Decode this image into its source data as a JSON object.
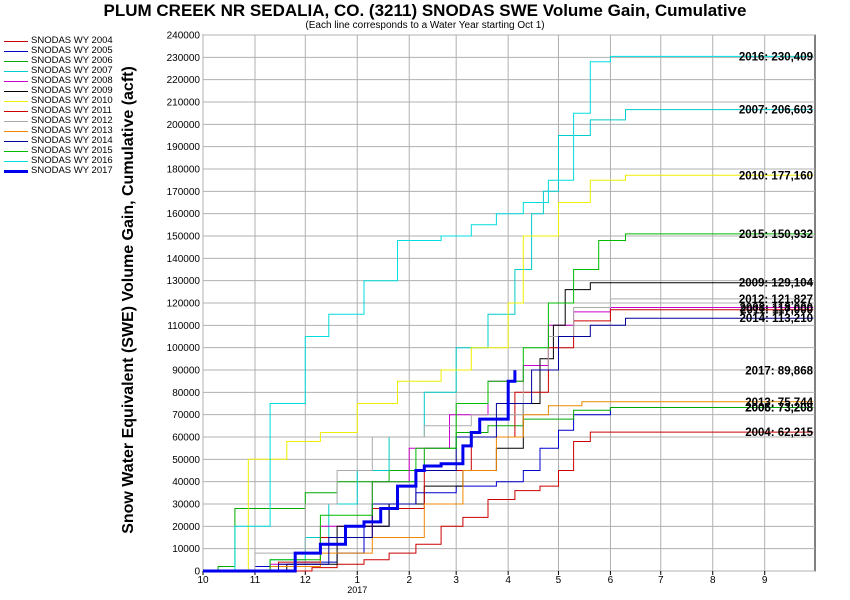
{
  "chart_data": {
    "type": "line",
    "title": "PLUM CREEK NR SEDALIA, CO. (3211) SNODAS SWE Volume Gain, Cumulative",
    "subtitle": "(Each line corresponds to a Water Year starting Oct 1)",
    "ylabel": "Snow Water Equivalent (SWE) Volume Gain, Cumulative (acft)",
    "xlabel": "",
    "ylim": [
      0,
      240000
    ],
    "yticks": [
      "0",
      "10000",
      "20000",
      "30000",
      "40000",
      "50000",
      "60000",
      "70000",
      "80000",
      "90000",
      "100000",
      "110000",
      "120000",
      "130000",
      "140000",
      "150000",
      "160000",
      "170000",
      "180000",
      "190000",
      "200000",
      "210000",
      "220000",
      "230000",
      "240000"
    ],
    "xlim": [
      "Oct 1",
      "Oct 1"
    ],
    "xticks": [
      "10",
      "11",
      "12",
      "1",
      "2",
      "3",
      "4",
      "5",
      "6",
      "7",
      "8",
      "9"
    ],
    "x_year_label": "2017",
    "grid": true,
    "legend_position": "left",
    "series": [
      {
        "name": "SNODAS WY 2004",
        "color": "#cc0000",
        "final_label": "2004: 62,215",
        "points": [
          [
            "Oct 1",
            0
          ],
          [
            "Nov 25",
            0
          ],
          [
            "Dec 5",
            1500
          ],
          [
            "Dec 20",
            3000
          ],
          [
            "Jan 5",
            5000
          ],
          [
            "Jan 20",
            8000
          ],
          [
            "Feb 5",
            12000
          ],
          [
            "Feb 20",
            20000
          ],
          [
            "Mar 5",
            24000
          ],
          [
            "Mar 20",
            32000
          ],
          [
            "Apr 5",
            36000
          ],
          [
            "Apr 20",
            38000
          ],
          [
            "May 1",
            45000
          ],
          [
            "May 10",
            58000
          ],
          [
            "May 20",
            62215
          ],
          [
            "Sep 30",
            62215
          ]
        ]
      },
      {
        "name": "SNODAS WY 2005",
        "color": "#0000cc",
        "final_label": "2005: 73,208",
        "points": [
          [
            "Oct 1",
            0
          ],
          [
            "Nov 1",
            2000
          ],
          [
            "Nov 25",
            4000
          ],
          [
            "Dec 20",
            8000
          ],
          [
            "Jan 5",
            20000
          ],
          [
            "Jan 20",
            30000
          ],
          [
            "Feb 5",
            35000
          ],
          [
            "Mar 1",
            38000
          ],
          [
            "Mar 25",
            40000
          ],
          [
            "Apr 10",
            45000
          ],
          [
            "Apr 20",
            55000
          ],
          [
            "May 1",
            63000
          ],
          [
            "May 10",
            70000
          ],
          [
            "Jun 1",
            73208
          ],
          [
            "Sep 30",
            73208
          ]
        ]
      },
      {
        "name": "SNODAS WY 2006",
        "color": "#00aa00",
        "final_label": "2006: 73,208",
        "points": [
          [
            "Oct 1",
            0
          ],
          [
            "Oct 10",
            2000
          ],
          [
            "Oct 20",
            28000
          ],
          [
            "Nov 20",
            28000
          ],
          [
            "Dec 1",
            35000
          ],
          [
            "Dec 20",
            40000
          ],
          [
            "Jan 20",
            45000
          ],
          [
            "Feb 10",
            55000
          ],
          [
            "Mar 1",
            62000
          ],
          [
            "Mar 20",
            65000
          ],
          [
            "Apr 10",
            68000
          ],
          [
            "May 10",
            72000
          ],
          [
            "Jun 1",
            73208
          ],
          [
            "Sep 30",
            73208
          ]
        ]
      },
      {
        "name": "SNODAS WY 2007",
        "color": "#00cccc",
        "final_label": "2007: 206,603",
        "points": [
          [
            "Oct 1",
            0
          ],
          [
            "Nov 10",
            5000
          ],
          [
            "Dec 1",
            15000
          ],
          [
            "Dec 15",
            30000
          ],
          [
            "Jan 1",
            45000
          ],
          [
            "Jan 20",
            60000
          ],
          [
            "Feb 10",
            80000
          ],
          [
            "Mar 1",
            100000
          ],
          [
            "Mar 20",
            115000
          ],
          [
            "Apr 5",
            135000
          ],
          [
            "Apr 15",
            160000
          ],
          [
            "Apr 22",
            170000
          ],
          [
            "May 1",
            195000
          ],
          [
            "May 20",
            202000
          ],
          [
            "Jun 10",
            206603
          ],
          [
            "Sep 30",
            206603
          ]
        ]
      },
      {
        "name": "SNODAS WY 2008",
        "color": "#cc00cc",
        "final_label": "2008: 118,000",
        "points": [
          [
            "Oct 1",
            0
          ],
          [
            "Nov 10",
            3000
          ],
          [
            "Dec 10",
            20000
          ],
          [
            "Jan 10",
            40000
          ],
          [
            "Feb 1",
            55000
          ],
          [
            "Feb 25",
            70000
          ],
          [
            "Mar 20",
            85000
          ],
          [
            "Apr 10",
            92000
          ],
          [
            "Apr 25",
            110000
          ],
          [
            "May 10",
            116000
          ],
          [
            "Jun 1",
            118000
          ],
          [
            "Sep 30",
            118000
          ]
        ]
      },
      {
        "name": "SNODAS WY 2009",
        "color": "#000000",
        "final_label": "2009: 129,104",
        "points": [
          [
            "Oct 1",
            0
          ],
          [
            "Nov 20",
            3000
          ],
          [
            "Dec 20",
            20000
          ],
          [
            "Jan 20",
            30000
          ],
          [
            "Feb 10",
            38000
          ],
          [
            "Mar 5",
            45000
          ],
          [
            "Mar 25",
            55000
          ],
          [
            "Apr 10",
            75000
          ],
          [
            "Apr 20",
            95000
          ],
          [
            "Apr 28",
            110000
          ],
          [
            "May 5",
            126000
          ],
          [
            "May 20",
            129104
          ],
          [
            "Sep 30",
            129104
          ]
        ]
      },
      {
        "name": "SNODAS WY 2010",
        "color": "#eeee00",
        "final_label": "2010: 177,160",
        "points": [
          [
            "Oct 1",
            0
          ],
          [
            "Oct 28",
            50000
          ],
          [
            "Nov 20",
            58000
          ],
          [
            "Dec 10",
            62000
          ],
          [
            "Jan 1",
            75000
          ],
          [
            "Jan 25",
            85000
          ],
          [
            "Feb 20",
            90000
          ],
          [
            "Mar 10",
            100000
          ],
          [
            "Apr 1",
            120000
          ],
          [
            "Apr 10",
            150000
          ],
          [
            "May 1",
            165000
          ],
          [
            "May 20",
            175000
          ],
          [
            "Jun 10",
            177160
          ],
          [
            "Sep 30",
            177160
          ]
        ]
      },
      {
        "name": "SNODAS WY 2011",
        "color": "#cc0000",
        "final_label": "2011: 117,000",
        "points": [
          [
            "Oct 1",
            0
          ],
          [
            "Nov 15",
            4000
          ],
          [
            "Dec 10",
            15000
          ],
          [
            "Jan 10",
            28000
          ],
          [
            "Feb 10",
            45000
          ],
          [
            "Mar 10",
            60000
          ],
          [
            "Apr 5",
            80000
          ],
          [
            "Apr 25",
            100000
          ],
          [
            "May 10",
            112000
          ],
          [
            "Jun 1",
            117000
          ],
          [
            "Sep 30",
            117000
          ]
        ]
      },
      {
        "name": "SNODAS WY 2012",
        "color": "#aaaaaa",
        "final_label": "2012: 121,827",
        "points": [
          [
            "Oct 1",
            0
          ],
          [
            "Nov 1",
            8000
          ],
          [
            "Dec 1",
            30000
          ],
          [
            "Dec 20",
            45000
          ],
          [
            "Jan 10",
            60000
          ],
          [
            "Feb 10",
            65000
          ],
          [
            "Mar 10",
            70000
          ],
          [
            "Apr 10",
            90000
          ],
          [
            "Apr 25",
            105000
          ],
          [
            "May 10",
            118000
          ],
          [
            "Jun 1",
            121827
          ],
          [
            "Sep 30",
            121827
          ]
        ]
      },
      {
        "name": "SNODAS WY 2013",
        "color": "#ee8800",
        "final_label": "2013: 75,744",
        "points": [
          [
            "Oct 1",
            0
          ],
          [
            "Nov 10",
            2000
          ],
          [
            "Dec 10",
            8000
          ],
          [
            "Jan 10",
            15000
          ],
          [
            "Feb 10",
            30000
          ],
          [
            "Mar 5",
            45000
          ],
          [
            "Mar 25",
            60000
          ],
          [
            "Apr 10",
            70000
          ],
          [
            "Apr 25",
            74000
          ],
          [
            "May 15",
            75744
          ],
          [
            "Sep 30",
            75744
          ]
        ]
      },
      {
        "name": "SNODAS WY 2014",
        "color": "#000099",
        "final_label": "2014: 113,210",
        "points": [
          [
            "Oct 1",
            0
          ],
          [
            "Nov 15",
            3000
          ],
          [
            "Dec 15",
            15000
          ],
          [
            "Jan 10",
            30000
          ],
          [
            "Feb 5",
            45000
          ],
          [
            "Mar 1",
            60000
          ],
          [
            "Mar 25",
            75000
          ],
          [
            "Apr 15",
            90000
          ],
          [
            "May 1",
            105000
          ],
          [
            "May 20",
            110000
          ],
          [
            "Jun 10",
            113210
          ],
          [
            "Sep 30",
            113210
          ]
        ]
      },
      {
        "name": "SNODAS WY 2015",
        "color": "#00bb00",
        "final_label": "2015: 150,932",
        "points": [
          [
            "Oct 1",
            0
          ],
          [
            "Nov 10",
            5000
          ],
          [
            "Dec 10",
            25000
          ],
          [
            "Jan 10",
            40000
          ],
          [
            "Feb 5",
            55000
          ],
          [
            "Mar 1",
            75000
          ],
          [
            "Mar 20",
            85000
          ],
          [
            "Apr 10",
            100000
          ],
          [
            "Apr 25",
            120000
          ],
          [
            "May 10",
            135000
          ],
          [
            "May 25",
            148000
          ],
          [
            "Jun 10",
            150932
          ],
          [
            "Sep 30",
            150932
          ]
        ]
      },
      {
        "name": "SNODAS WY 2016",
        "color": "#00dddd",
        "final_label": "2016: 230,409",
        "points": [
          [
            "Oct 1",
            0
          ],
          [
            "Oct 20",
            20000
          ],
          [
            "Nov 10",
            75000
          ],
          [
            "Dec 1",
            105000
          ],
          [
            "Dec 15",
            115000
          ],
          [
            "Jan 5",
            130000
          ],
          [
            "Jan 25",
            148000
          ],
          [
            "Feb 20",
            150000
          ],
          [
            "Mar 10",
            155000
          ],
          [
            "Mar 25",
            160000
          ],
          [
            "Apr 10",
            165000
          ],
          [
            "Apr 25",
            175000
          ],
          [
            "May 10",
            205000
          ],
          [
            "May 20",
            228000
          ],
          [
            "Jun 1",
            230409
          ],
          [
            "Sep 30",
            230409
          ]
        ]
      },
      {
        "name": "SNODAS WY 2017",
        "color": "#0000ee",
        "final_label": "2017: 89,868",
        "bold": true,
        "points": [
          [
            "Oct 1",
            0
          ],
          [
            "Nov 15",
            0
          ],
          [
            "Nov 25",
            8000
          ],
          [
            "Dec 10",
            12000
          ],
          [
            "Dec 25",
            20000
          ],
          [
            "Jan 5",
            22000
          ],
          [
            "Jan 15",
            28000
          ],
          [
            "Jan 25",
            38000
          ],
          [
            "Feb 5",
            45000
          ],
          [
            "Feb 10",
            47000
          ],
          [
            "Feb 20",
            48000
          ],
          [
            "Mar 1",
            48000
          ],
          [
            "Mar 5",
            56000
          ],
          [
            "Mar 10",
            62000
          ],
          [
            "Mar 15",
            68000
          ],
          [
            "Mar 25",
            68000
          ],
          [
            "Apr 1",
            85000
          ],
          [
            "Apr 5",
            89868
          ]
        ]
      }
    ]
  }
}
